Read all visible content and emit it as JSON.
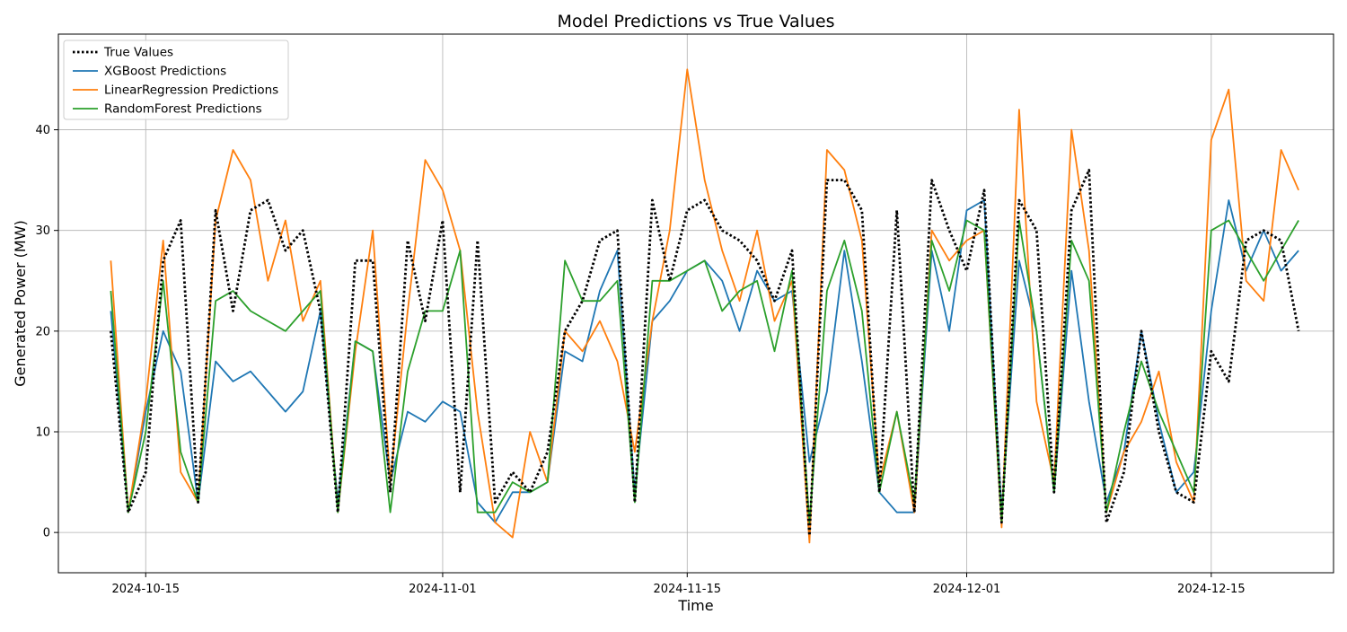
{
  "chart_data": {
    "type": "line",
    "title": "Model Predictions vs True Values",
    "xlabel": "Time",
    "ylabel": "Generated Power (MW)",
    "x_ticks": [
      "2024-10-15",
      "2024-11-01",
      "2024-11-15",
      "2024-12-01",
      "2024-12-15"
    ],
    "y_ticks": [
      "0",
      "10",
      "20",
      "30",
      "40"
    ],
    "xlim": [
      "2024-10-10",
      "2024-12-22"
    ],
    "ylim": [
      -4,
      49.5
    ],
    "grid": true,
    "legend_position": "top-left",
    "x": [
      "2024-10-13",
      "2024-10-14",
      "2024-10-15",
      "2024-10-16",
      "2024-10-17",
      "2024-10-18",
      "2024-10-19",
      "2024-10-20",
      "2024-10-21",
      "2024-10-22",
      "2024-10-23",
      "2024-10-24",
      "2024-10-25",
      "2024-10-26",
      "2024-10-27",
      "2024-10-28",
      "2024-10-29",
      "2024-10-30",
      "2024-10-31",
      "2024-11-01",
      "2024-11-02",
      "2024-11-03",
      "2024-11-04",
      "2024-11-05",
      "2024-11-06",
      "2024-11-07",
      "2024-11-08",
      "2024-11-09",
      "2024-11-10",
      "2024-11-11",
      "2024-11-12",
      "2024-11-13",
      "2024-11-14",
      "2024-11-15",
      "2024-11-16",
      "2024-11-17",
      "2024-11-18",
      "2024-11-19",
      "2024-11-20",
      "2024-11-21",
      "2024-11-22",
      "2024-11-23",
      "2024-11-24",
      "2024-11-25",
      "2024-11-26",
      "2024-11-27",
      "2024-11-28",
      "2024-11-29",
      "2024-11-30",
      "2024-12-01",
      "2024-12-02",
      "2024-12-03",
      "2024-12-04",
      "2024-12-05",
      "2024-12-06",
      "2024-12-07",
      "2024-12-08",
      "2024-12-09",
      "2024-12-10",
      "2024-12-11",
      "2024-12-12",
      "2024-12-13",
      "2024-12-14",
      "2024-12-15",
      "2024-12-16",
      "2024-12-17",
      "2024-12-18",
      "2024-12-19",
      "2024-12-20"
    ],
    "series": [
      {
        "name": "True Values",
        "color": "#000000",
        "style": "dotted",
        "values": [
          20,
          2,
          6,
          27,
          31,
          3,
          32,
          22,
          32,
          33,
          28,
          30,
          22,
          2,
          27,
          27,
          4,
          29,
          21,
          31,
          4,
          29,
          3,
          6,
          4,
          8,
          20,
          23,
          29,
          30,
          3,
          33,
          25,
          32,
          33,
          30,
          29,
          27,
          23,
          28,
          -0.3,
          35,
          35,
          32,
          4,
          32,
          2,
          35,
          30,
          26,
          34,
          1,
          33,
          30,
          4,
          32,
          36,
          1,
          6,
          20,
          10,
          4,
          3,
          18,
          15,
          29,
          30,
          29,
          20
        ]
      },
      {
        "name": "XGBoost Predictions",
        "color": "#1f77b4",
        "style": "solid",
        "values": [
          22,
          2,
          12,
          20,
          16,
          3,
          17,
          15,
          16,
          14,
          12,
          14,
          22,
          3,
          19,
          18,
          5,
          12,
          11,
          13,
          12,
          3,
          1,
          4,
          4,
          5,
          18,
          17,
          24,
          28,
          4,
          21,
          23,
          26,
          27,
          25,
          20,
          26,
          23,
          24,
          7,
          14,
          28,
          17,
          4,
          2,
          2,
          28,
          20,
          32,
          33,
          2,
          27,
          20,
          4,
          26,
          13,
          3,
          8,
          20,
          11,
          4,
          6,
          22,
          33,
          26,
          30,
          26,
          28
        ]
      },
      {
        "name": "LinearRegression Predictions",
        "color": "#ff7f0e",
        "style": "solid",
        "values": [
          27,
          2,
          13,
          29,
          6,
          3,
          31,
          38,
          35,
          25,
          31,
          21,
          25,
          2,
          18,
          30,
          5,
          22,
          37,
          34,
          28,
          12,
          1,
          -0.5,
          10,
          5,
          20,
          18,
          21,
          17,
          8,
          21,
          30,
          46,
          35,
          28,
          23,
          30,
          21,
          25,
          -1,
          38,
          36,
          29,
          5,
          12,
          2,
          30,
          27,
          29,
          30,
          0.5,
          42,
          13,
          5,
          40,
          28,
          2,
          8,
          11,
          16,
          7,
          3,
          39,
          44,
          25,
          23,
          38,
          34
        ]
      },
      {
        "name": "RandomForest Predictions",
        "color": "#2ca02c",
        "style": "solid",
        "values": [
          24,
          2,
          10,
          25,
          8,
          3,
          23,
          24,
          22,
          21,
          20,
          22,
          24,
          2,
          19,
          18,
          2,
          16,
          22,
          22,
          28,
          2,
          2,
          5,
          4,
          5,
          27,
          23,
          23,
          25,
          3,
          25,
          25,
          26,
          27,
          22,
          24,
          25,
          18,
          26,
          1,
          24,
          29,
          22,
          4,
          12,
          3,
          29,
          24,
          31,
          30,
          1,
          31,
          20,
          4,
          29,
          25,
          2,
          10,
          17,
          12,
          8,
          4,
          30,
          31,
          28,
          25,
          28,
          31
        ]
      }
    ]
  }
}
